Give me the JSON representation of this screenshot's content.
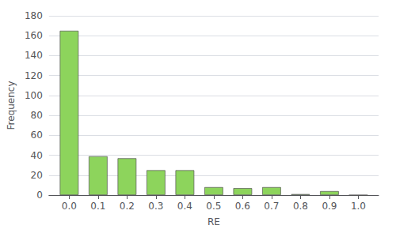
{
  "chart_data": {
    "type": "bar",
    "x": [
      0.0,
      0.1,
      0.2,
      0.3,
      0.4,
      0.5,
      0.6,
      0.7,
      0.8,
      0.9,
      1.0
    ],
    "values": [
      165,
      39,
      37,
      25,
      25,
      8,
      7,
      8,
      1,
      4,
      0
    ],
    "color": "#8dd45c",
    "xlabel": "RE",
    "ylabel": "Frequency",
    "xlim": [
      -0.07,
      1.07
    ],
    "xticks": [
      {
        "value": 0.0,
        "label": "0.0"
      },
      0.1,
      0.2,
      0.3,
      0.4,
      0.5,
      0.6,
      0.7,
      0.8,
      0.9,
      {
        "value": 1.0,
        "label": "1.0"
      }
    ],
    "ylim": [
      0,
      180
    ],
    "yticks": [
      0,
      20,
      40,
      60,
      80,
      100,
      120,
      140,
      160,
      180
    ],
    "grid": true
  }
}
